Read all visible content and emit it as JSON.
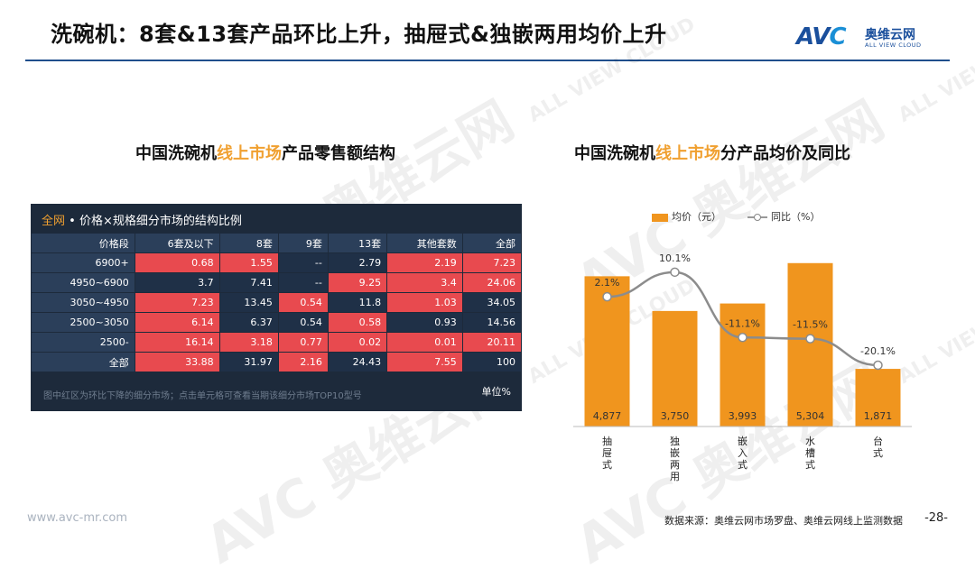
{
  "header": {
    "title": "洗碗机：8套&13套产品环比上升，抽屉式&独嵌两用均价上升",
    "logo_mark_a": "AV",
    "logo_mark_c": "C",
    "logo_cn": "奥维云网",
    "logo_en": "ALL VIEW CLOUD"
  },
  "watermark": {
    "text": "AVC 奥维云网",
    "sub": "ALL VIEW CLOUD"
  },
  "left": {
    "subtitle_a": "中国洗碗机",
    "subtitle_hl": "线上市场",
    "subtitle_b": "产品零售额结构",
    "table_head_net": "全网",
    "table_head_rest": " • 价格×规格细分市场的结构比例",
    "columns": [
      "价格段",
      "6套及以下",
      "8套",
      "9套",
      "13套",
      "其他套数",
      "全部"
    ],
    "rows": [
      {
        "label": "6900+",
        "cells": [
          "0.68",
          "1.55",
          "--",
          "2.79",
          "2.19",
          "7.23"
        ],
        "red": [
          true,
          true,
          false,
          false,
          true,
          true
        ]
      },
      {
        "label": "4950~6900",
        "cells": [
          "3.7",
          "7.41",
          "--",
          "9.25",
          "3.4",
          "24.06"
        ],
        "red": [
          false,
          false,
          false,
          true,
          true,
          true
        ]
      },
      {
        "label": "3050~4950",
        "cells": [
          "7.23",
          "13.45",
          "0.54",
          "11.8",
          "1.03",
          "34.05"
        ],
        "red": [
          true,
          false,
          true,
          false,
          true,
          false
        ]
      },
      {
        "label": "2500~3050",
        "cells": [
          "6.14",
          "6.37",
          "0.54",
          "0.58",
          "0.93",
          "14.56"
        ],
        "red": [
          true,
          false,
          false,
          true,
          false,
          false
        ]
      },
      {
        "label": "2500-",
        "cells": [
          "16.14",
          "3.18",
          "0.77",
          "0.02",
          "0.01",
          "20.11"
        ],
        "red": [
          true,
          true,
          true,
          true,
          true,
          true
        ]
      },
      {
        "label": "全部",
        "cells": [
          "33.88",
          "31.97",
          "2.16",
          "24.43",
          "7.55",
          "100"
        ],
        "red": [
          true,
          false,
          true,
          false,
          true,
          false
        ]
      }
    ],
    "note": "图中红区为环比下降的细分市场；点击单元格可查看当期该细分市场TOP10型号",
    "unit": "单位%"
  },
  "right": {
    "subtitle_a": "中国洗碗机",
    "subtitle_hl": "线上市场",
    "subtitle_b": "分产品均价及同比",
    "legend_bar": "均价（元）",
    "legend_line": "同比（%）"
  },
  "chart_data": {
    "type": "bar",
    "categories": [
      "抽屉式",
      "独嵌两用",
      "嵌入式",
      "水槽式",
      "台式"
    ],
    "series": [
      {
        "name": "均价（元）",
        "type": "bar",
        "values": [
          4877,
          3750,
          3993,
          5304,
          1871
        ],
        "labels": [
          "4,877",
          "3,750",
          "3,993",
          "5,304",
          "1,871"
        ],
        "color": "#f0951e"
      },
      {
        "name": "同比（%）",
        "type": "line",
        "values": [
          2.1,
          10.1,
          -11.1,
          -11.5,
          -20.1
        ],
        "labels": [
          "2.1%",
          "10.1%",
          "-11.1%",
          "-11.5%",
          "-20.1%"
        ],
        "color": "#8c8c8c"
      }
    ],
    "ylim": [
      0,
      6000
    ],
    "y2lim": [
      -40,
      20
    ],
    "grid": false,
    "legend": "top"
  },
  "footer": {
    "site": "www.avc-mr.com",
    "source": "数据来源：奥维云网市场罗盘、奥维云网线上监测数据",
    "page": "-28-"
  }
}
